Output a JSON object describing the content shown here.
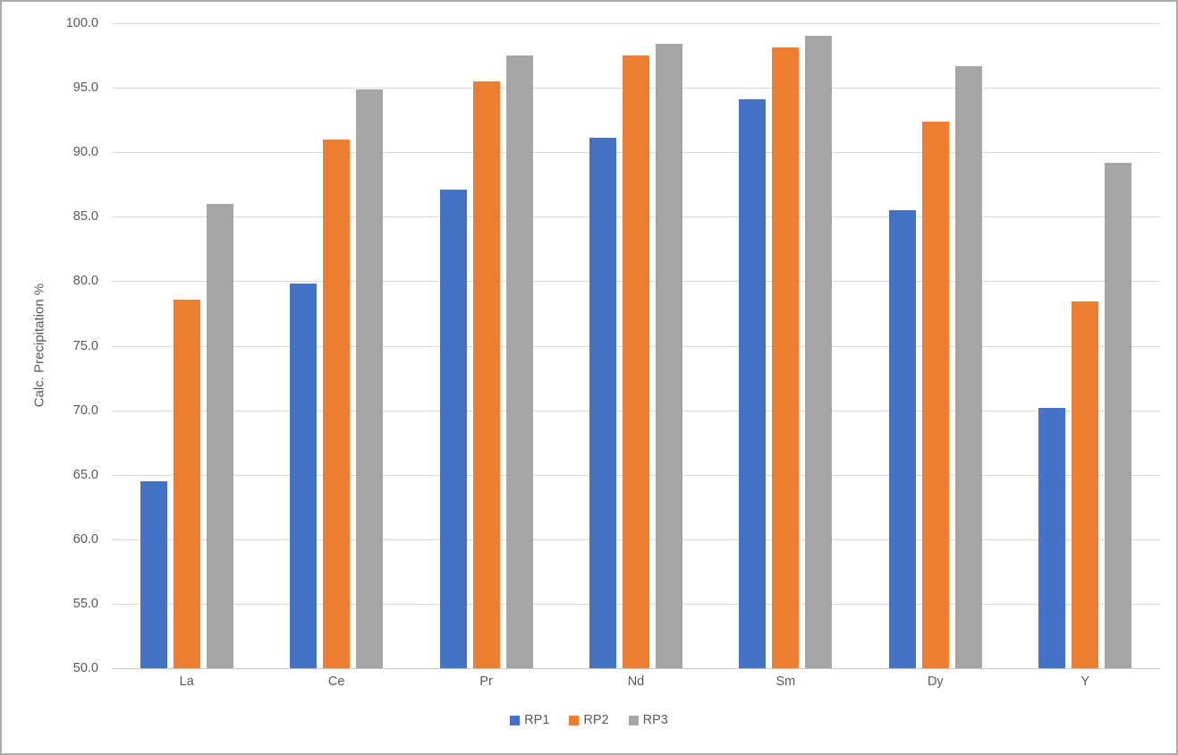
{
  "chart_data": {
    "type": "bar",
    "title": "",
    "xlabel": "",
    "ylabel": "Calc. Precipitation %",
    "ylim": [
      50.0,
      100.0
    ],
    "ytick_step": 5.0,
    "ytick_labels": [
      "100.0",
      "95.0",
      "90.0",
      "85.0",
      "80.0",
      "75.0",
      "70.0",
      "65.0",
      "60.0",
      "55.0",
      "50.0"
    ],
    "categories": [
      "La",
      "Ce",
      "Pr",
      "Nd",
      "Sm",
      "Dy",
      "Y"
    ],
    "series": [
      {
        "name": "RP1",
        "color": "#4472C4",
        "values": [
          64.5,
          79.8,
          87.1,
          91.1,
          94.1,
          85.5,
          70.2
        ]
      },
      {
        "name": "RP2",
        "color": "#ED7D31",
        "values": [
          78.6,
          91.0,
          95.5,
          97.5,
          98.1,
          92.4,
          78.4
        ]
      },
      {
        "name": "RP3",
        "color": "#A5A5A5",
        "values": [
          86.0,
          94.9,
          97.5,
          98.4,
          99.0,
          96.7,
          89.2
        ]
      }
    ],
    "legend_position": "bottom",
    "grid": true
  },
  "colors": {
    "gridline": "#d9d9d9",
    "axis_text": "#595959",
    "frame_border": "#ababab",
    "background": "#ffffff"
  }
}
